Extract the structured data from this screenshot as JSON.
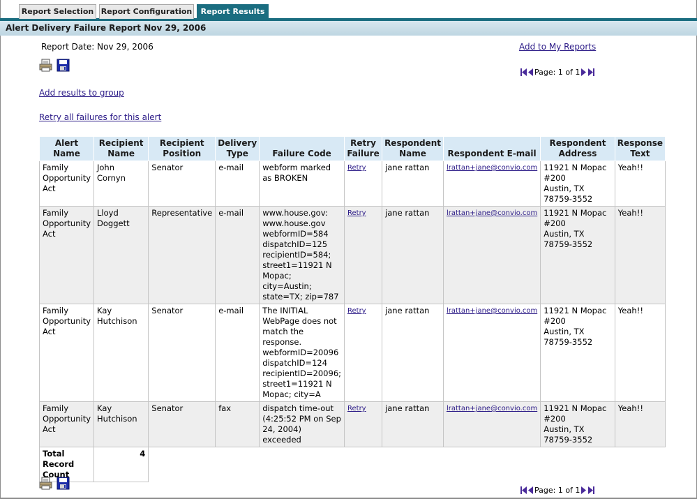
{
  "tabs": [
    {
      "label": "Report Selection"
    },
    {
      "label": "Report Configuration"
    },
    {
      "label": "Report Results"
    }
  ],
  "report": {
    "title": "Alert Delivery Failure Report Nov 29, 2006",
    "date_label": "Report Date:",
    "date_value": "Nov 29, 2006",
    "add_to_my_reports": "Add to My Reports",
    "add_results_to_group": "Add results to group",
    "retry_all": "Retry all failures for this alert",
    "pager_text": "Page: 1 of 1"
  },
  "icons": {
    "print": "printer-icon",
    "save": "floppy-disk-icon",
    "first": "first-page-icon",
    "prev": "previous-page-icon",
    "next": "next-page-icon",
    "last": "last-page-icon"
  },
  "colors": {
    "tab_active": "#1a6d80",
    "header_bg": "#d8e9f5",
    "link": "#2b1a87",
    "nav_icon": "#4a2b9a"
  },
  "table": {
    "headers": {
      "alert_name": "Alert Name",
      "recipient_name": "Recipient Name",
      "recipient_position": "Recipient Position",
      "delivery_type": "Delivery Type",
      "failure_code": "Failure Code",
      "retry_failure": "Retry Failure",
      "respondent_name": "Respondent Name",
      "respondent_email": "Respondent E-mail",
      "respondent_address": "Respondent Address",
      "response_text": "Response Text"
    },
    "rows": [
      {
        "alert_name": "Family Opportunity Act",
        "recipient_name": "John Cornyn",
        "recipient_position": "Senator",
        "delivery_type": "e-mail",
        "failure_code": "webform marked as BROKEN",
        "retry": "Retry",
        "respondent_name": "jane rattan",
        "respondent_email": "lrattan+jane@convio.com",
        "address_line1": "11921 N Mopac",
        "address_line2": "#200",
        "address_line3": "Austin, TX 78759-3552",
        "response_text": "Yeah!!"
      },
      {
        "alert_name": "Family Opportunity Act",
        "recipient_name": "Lloyd Doggett",
        "recipient_position": "Representative",
        "delivery_type": "e-mail",
        "failure_code": "www.house.gov: www.house.gov webformID=584 dispatchID=125 recipientID=584; street1=11921 N Mopac; city=Austin; state=TX; zip=787",
        "retry": "Retry",
        "respondent_name": "jane rattan",
        "respondent_email": "lrattan+jane@convio.com",
        "address_line1": "11921 N Mopac",
        "address_line2": "#200",
        "address_line3": "Austin, TX 78759-3552",
        "response_text": "Yeah!!"
      },
      {
        "alert_name": "Family Opportunity Act",
        "recipient_name": "Kay Hutchison",
        "recipient_position": "Senator",
        "delivery_type": "e-mail",
        "failure_code": "The INITIAL WebPage does not match the response. webformID=20096 dispatchID=124 recipientID=20096; street1=11921 N Mopac; city=A",
        "retry": "Retry",
        "respondent_name": "jane rattan",
        "respondent_email": "lrattan+jane@convio.com",
        "address_line1": "11921 N Mopac",
        "address_line2": "#200",
        "address_line3": "Austin, TX 78759-3552",
        "response_text": "Yeah!!"
      },
      {
        "alert_name": "Family Opportunity Act",
        "recipient_name": "Kay Hutchison",
        "recipient_position": "Senator",
        "delivery_type": "fax",
        "failure_code": "dispatch time-out (4:25:52 PM on Sep 24, 2004) exceeded",
        "retry": "Retry",
        "respondent_name": "jane rattan",
        "respondent_email": "lrattan+jane@convio.com",
        "address_line1": "11921 N Mopac",
        "address_line2": "#200",
        "address_line3": "Austin, TX 78759-3552",
        "response_text": "Yeah!!"
      }
    ],
    "total_label": "Total Record Count",
    "total_value": "4"
  }
}
